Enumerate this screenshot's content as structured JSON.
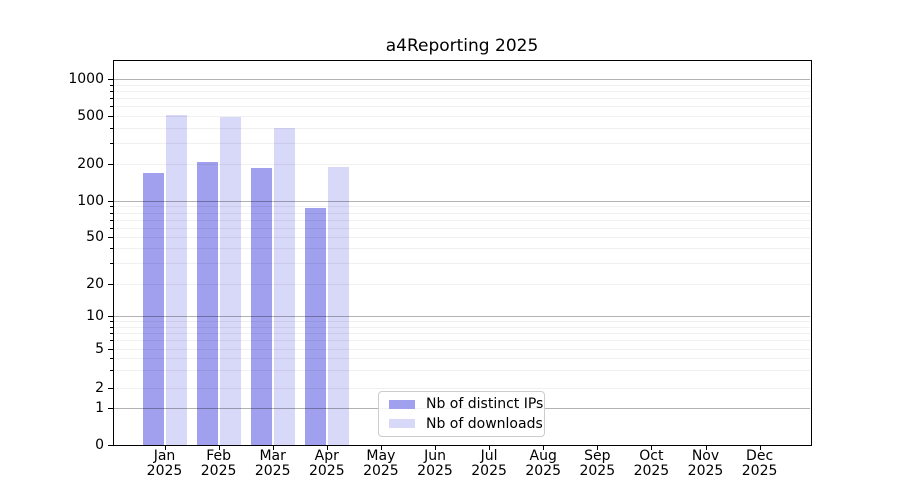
{
  "chart_data": {
    "type": "bar",
    "title": "a4Reporting 2025",
    "scale": "symlog",
    "grid": true,
    "legend_position": "inside-bottom-center",
    "categories": [
      "Jan",
      "Feb",
      "Mar",
      "Apr",
      "May",
      "Jun",
      "Jul",
      "Aug",
      "Sep",
      "Oct",
      "Nov",
      "Dec"
    ],
    "category_sublabel": "2025",
    "yticks": [
      0,
      1,
      2,
      5,
      10,
      20,
      50,
      100,
      200,
      500,
      1000
    ],
    "ylim": [
      0,
      1430
    ],
    "series": [
      {
        "name": "Nb of distinct IPs",
        "color": "#a0a0ee",
        "values": [
          170,
          207,
          185,
          87,
          null,
          null,
          null,
          null,
          null,
          null,
          null,
          null
        ]
      },
      {
        "name": "Nb of downloads",
        "color": "#d8d8f8",
        "values": [
          505,
          495,
          400,
          188,
          null,
          null,
          null,
          null,
          null,
          null,
          null,
          null
        ]
      }
    ]
  }
}
